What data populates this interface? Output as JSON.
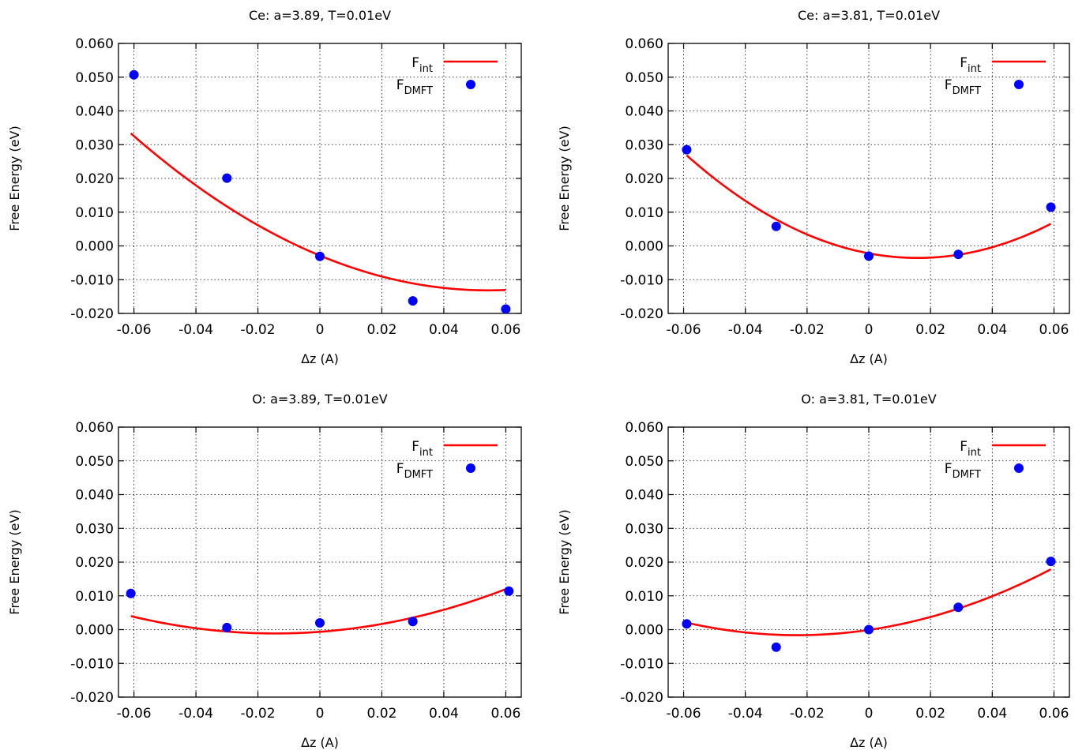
{
  "chart_data": [
    {
      "type": "scatter",
      "title": "Ce: a=3.89, T=0.01eV",
      "xlabel": "Δz (A)",
      "ylabel": "Free Energy (eV)",
      "xlim": [
        -0.065,
        0.065
      ],
      "ylim": [
        -0.02,
        0.06
      ],
      "xticks": [
        "-0.06",
        "-0.04",
        "-0.02",
        "0",
        "0.02",
        "0.04",
        "0.06"
      ],
      "yticks": [
        "0.060",
        "0.050",
        "0.040",
        "0.030",
        "0.020",
        "0.010",
        "0.000",
        "-0.010",
        "-0.020"
      ],
      "grid": true,
      "legend_position": "top-right",
      "series": [
        {
          "name": "F",
          "subscript": "int",
          "kind": "line",
          "color": "#ff0000",
          "fit": [
            -0.00285,
            -0.38,
            3.5
          ],
          "x_range": [
            -0.061,
            0.06
          ]
        },
        {
          "name": "F",
          "subscript": "DMFT",
          "kind": "points",
          "color": "#0000ff",
          "x": [
            -0.06,
            -0.03,
            0.0,
            0.03,
            0.06
          ],
          "y": [
            0.0507,
            0.0201,
            -0.0031,
            -0.0163,
            -0.0187
          ]
        }
      ]
    },
    {
      "type": "scatter",
      "title": "Ce: a=3.81, T=0.01eV",
      "xlabel": "Δz (A)",
      "ylabel": "Free Energy (eV)",
      "xlim": [
        -0.065,
        0.065
      ],
      "ylim": [
        -0.02,
        0.06
      ],
      "xticks": [
        "-0.06",
        "-0.04",
        "-0.02",
        "0",
        "0.02",
        "0.04",
        "0.06"
      ],
      "yticks": [
        "0.060",
        "0.050",
        "0.040",
        "0.030",
        "0.020",
        "0.010",
        "0.000",
        "-0.010",
        "-0.020"
      ],
      "grid": true,
      "legend_position": "top-right",
      "series": [
        {
          "name": "F",
          "subscript": "int",
          "kind": "line",
          "color": "#ff0000",
          "fit": [
            -0.0022,
            -0.172,
            5.43
          ],
          "x_range": [
            -0.059,
            0.059
          ]
        },
        {
          "name": "F",
          "subscript": "DMFT",
          "kind": "points",
          "color": "#0000ff",
          "x": [
            -0.059,
            -0.03,
            0.0,
            0.029,
            0.059
          ],
          "y": [
            0.0285,
            0.0058,
            -0.003,
            -0.0025,
            0.0115
          ]
        }
      ]
    },
    {
      "type": "scatter",
      "title": "O: a=3.89, T=0.01eV",
      "xlabel": "Δz (A)",
      "ylabel": "Free Energy (eV)",
      "xlim": [
        -0.065,
        0.065
      ],
      "ylim": [
        -0.02,
        0.06
      ],
      "xticks": [
        "-0.06",
        "-0.04",
        "-0.02",
        "0",
        "0.02",
        "0.04",
        "0.06"
      ],
      "yticks": [
        "0.060",
        "0.050",
        "0.040",
        "0.030",
        "0.020",
        "0.010",
        "0.000",
        "-0.010",
        "-0.020"
      ],
      "grid": true,
      "legend_position": "top-right",
      "series": [
        {
          "name": "F",
          "subscript": "int",
          "kind": "line",
          "color": "#ff0000",
          "fit": [
            -0.00065,
            0.0683,
            2.37
          ],
          "x_range": [
            -0.061,
            0.061
          ]
        },
        {
          "name": "F",
          "subscript": "DMFT",
          "kind": "points",
          "color": "#0000ff",
          "x": [
            -0.061,
            -0.03,
            0.0,
            0.03,
            0.061
          ],
          "y": [
            0.0107,
            0.0006,
            0.002,
            0.0024,
            0.0114
          ]
        }
      ]
    },
    {
      "type": "scatter",
      "title": "O: a=3.81, T=0.01eV",
      "xlabel": "Δz (A)",
      "ylabel": "Free Energy (eV)",
      "xlim": [
        -0.065,
        0.065
      ],
      "ylim": [
        -0.02,
        0.06
      ],
      "xticks": [
        "-0.06",
        "-0.04",
        "-0.02",
        "0",
        "0.02",
        "0.04",
        "0.06"
      ],
      "yticks": [
        "0.060",
        "0.050",
        "0.040",
        "0.030",
        "0.020",
        "0.010",
        "0.000",
        "-0.010",
        "-0.020"
      ],
      "grid": true,
      "legend_position": "top-right",
      "series": [
        {
          "name": "F",
          "subscript": "int",
          "kind": "line",
          "color": "#ff0000",
          "fit": [
            -0.0001,
            0.134,
            2.89
          ],
          "x_range": [
            -0.059,
            0.059
          ]
        },
        {
          "name": "F",
          "subscript": "DMFT",
          "kind": "points",
          "color": "#0000ff",
          "x": [
            -0.059,
            -0.03,
            0.0,
            0.029,
            0.059
          ],
          "y": [
            0.0017,
            -0.0052,
            0.0,
            0.0066,
            0.0202
          ]
        }
      ]
    }
  ]
}
